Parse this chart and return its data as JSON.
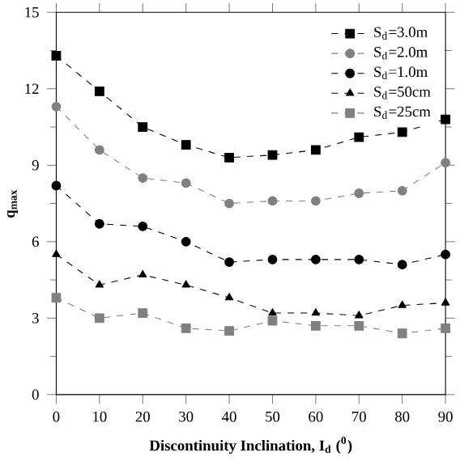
{
  "chart_data": {
    "type": "line",
    "xlabel": "Discontinuity Inclination, I$_{d}$ ($^{0}$)",
    "ylabel": "q$_{max}$",
    "x": [
      0,
      10,
      20,
      30,
      40,
      50,
      60,
      70,
      80,
      90
    ],
    "series": [
      {
        "name": "S$_{d}$=3.0m",
        "color": "#000000",
        "marker": "square",
        "values": [
          13.3,
          11.9,
          10.5,
          9.8,
          9.3,
          9.4,
          9.6,
          10.1,
          10.3,
          10.8
        ]
      },
      {
        "name": "S$_{d}$=2.0m",
        "color": "#808080",
        "marker": "circle",
        "values": [
          11.3,
          9.6,
          8.5,
          8.3,
          7.5,
          7.6,
          7.6,
          7.9,
          8.0,
          9.1
        ]
      },
      {
        "name": "S$_{d}$=1.0m",
        "color": "#000000",
        "marker": "circle",
        "values": [
          8.2,
          6.7,
          6.6,
          6.0,
          5.2,
          5.3,
          5.3,
          5.3,
          5.1,
          5.5
        ]
      },
      {
        "name": "S$_{d}$=50cm",
        "color": "#000000",
        "marker": "triangle",
        "values": [
          5.5,
          4.3,
          4.7,
          4.3,
          3.8,
          3.2,
          3.2,
          3.1,
          3.5,
          3.6
        ]
      },
      {
        "name": "S$_{d}$=25cm",
        "color": "#808080",
        "marker": "square",
        "values": [
          3.8,
          3.0,
          3.2,
          2.6,
          2.5,
          2.9,
          2.7,
          2.7,
          2.4,
          2.6
        ]
      }
    ],
    "xlim": [
      0,
      90
    ],
    "xticks": [
      0,
      10,
      20,
      30,
      40,
      50,
      60,
      70,
      80,
      90
    ],
    "ylim": [
      0,
      15
    ],
    "yticks": [
      0,
      3,
      6,
      9,
      12,
      15
    ],
    "grid": false,
    "legend": "top right",
    "line_style": "dashed"
  }
}
